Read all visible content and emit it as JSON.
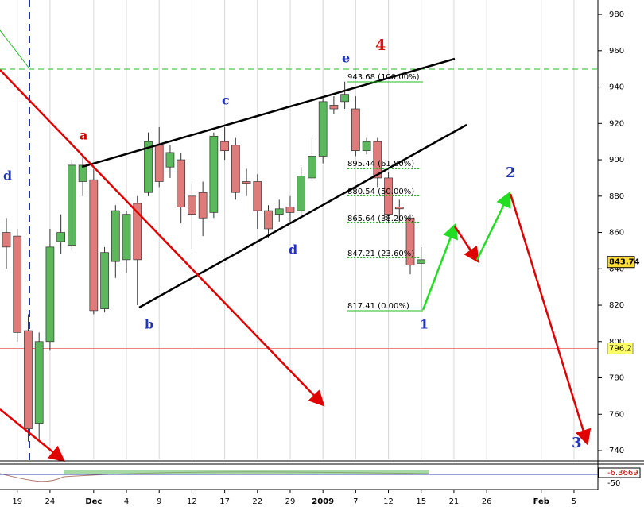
{
  "chart_data": {
    "type": "candlestick",
    "categories": [
      null,
      "19",
      null,
      null,
      "24",
      null,
      null,
      null,
      "Dec",
      null,
      null,
      "4",
      null,
      null,
      "9",
      null,
      null,
      "12",
      null,
      null,
      "17",
      null,
      null,
      "22",
      null,
      null,
      "29",
      null,
      null,
      "2009",
      null,
      null,
      "7",
      null,
      null,
      "12",
      null,
      null,
      "15",
      null,
      null,
      "21",
      null,
      null,
      "26",
      null,
      null,
      null,
      null,
      "Feb",
      null,
      null,
      "5",
      null,
      null
    ],
    "open": [
      860,
      858,
      806,
      755,
      800,
      855,
      853,
      888,
      889,
      818,
      844,
      845,
      876,
      882,
      908,
      896,
      900,
      880,
      882,
      871,
      910,
      908,
      888,
      888,
      872,
      870,
      874,
      872,
      890,
      902,
      930,
      932,
      928,
      905,
      910,
      890,
      874,
      868,
      843,
      null,
      null,
      null,
      null,
      null,
      null,
      null,
      null,
      null,
      null,
      null,
      null,
      null,
      null,
      null,
      null
    ],
    "high": [
      868,
      862,
      815,
      805,
      862,
      870,
      900,
      902,
      895,
      852,
      875,
      872,
      880,
      915,
      918,
      908,
      904,
      887,
      888,
      915,
      918,
      912,
      895,
      892,
      875,
      878,
      880,
      896,
      912,
      934,
      935,
      943,
      935,
      912,
      912,
      893,
      878,
      870,
      852,
      null,
      null,
      null,
      null,
      null,
      null,
      null,
      null,
      null,
      null,
      null,
      null,
      null,
      null,
      null,
      null
    ],
    "low": [
      840,
      800,
      745,
      745,
      795,
      848,
      850,
      880,
      815,
      816,
      835,
      838,
      820,
      880,
      885,
      890,
      865,
      851,
      858,
      868,
      900,
      878,
      880,
      862,
      857,
      866,
      865,
      870,
      888,
      898,
      925,
      928,
      902,
      903,
      885,
      865,
      866,
      837,
      817,
      null,
      null,
      null,
      null,
      null,
      null,
      null,
      null,
      null,
      null,
      null,
      null,
      null,
      null,
      null,
      null
    ],
    "close": [
      852,
      805,
      752,
      800,
      852,
      860,
      897,
      897,
      817,
      849,
      872,
      870,
      845,
      910,
      888,
      904,
      874,
      870,
      868,
      913,
      905,
      882,
      887,
      872,
      862,
      873,
      871,
      891,
      902,
      932,
      928,
      936,
      905,
      910,
      890,
      870,
      873,
      842,
      845,
      null,
      null,
      null,
      null,
      null,
      null,
      null,
      null,
      null,
      null,
      null,
      null,
      null,
      null,
      null,
      null
    ],
    "up_color": "#5cb85c",
    "down_color": "#e07b7b",
    "ylim": [
      735.2,
      987.9
    ],
    "yticks": [
      740,
      760,
      780,
      800,
      820,
      840,
      860,
      880,
      900,
      920,
      940,
      960,
      980
    ],
    "last_price": 843.74,
    "reference_price": 796.2,
    "indicator_labels": [
      "-6.3669",
      "-50"
    ],
    "wave_labels": [
      "a",
      "b",
      "c",
      "d",
      "d",
      "e",
      "4",
      "1",
      "2",
      "3"
    ],
    "fib_levels": [
      "943.68 (100.00%)",
      "895.44 (61.80%)",
      "880.54 (50.00%)",
      "865.64 (38.20%)",
      "847.21 (23.60%)",
      "817.41 (0.00%)"
    ]
  }
}
